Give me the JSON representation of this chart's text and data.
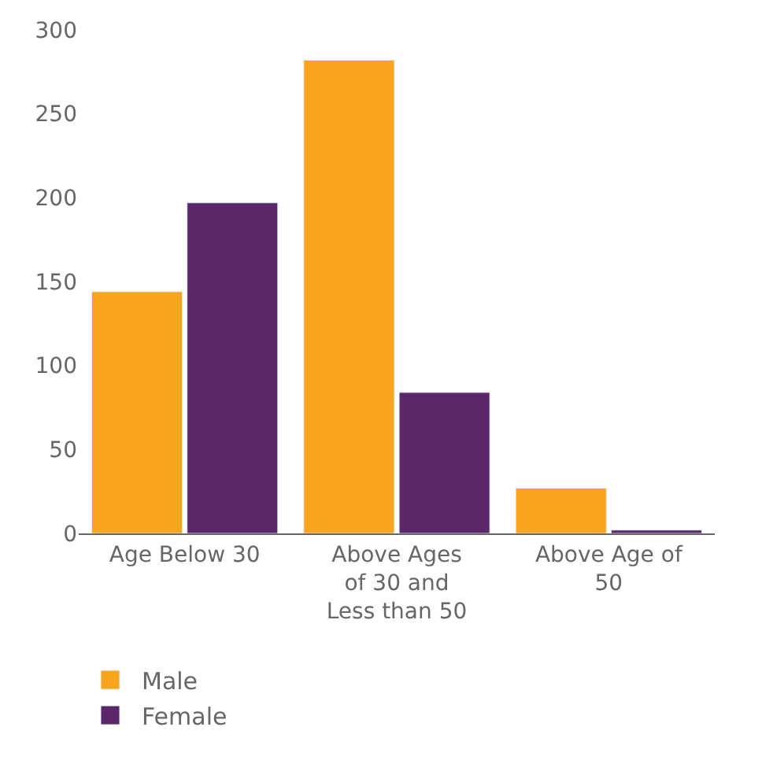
{
  "chart_data": {
    "type": "bar",
    "categories": [
      "Age Below 30",
      "Above Ages of 30 and Less than 50",
      "Above Age of 50"
    ],
    "series": [
      {
        "name": "Male",
        "color": "#f7a51c",
        "values": [
          144,
          282,
          27
        ]
      },
      {
        "name": "Female",
        "color": "#5a276b",
        "values": [
          197,
          84,
          2
        ]
      }
    ],
    "ylim": [
      0,
      300
    ],
    "yticks": [
      0,
      50,
      100,
      150,
      200,
      250,
      300
    ],
    "legend": "bottom left"
  }
}
